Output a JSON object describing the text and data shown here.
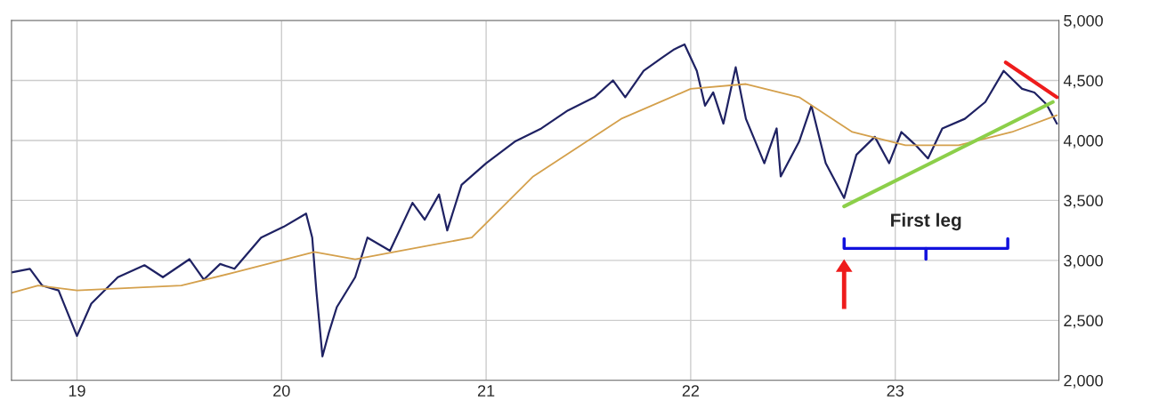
{
  "chart_data": {
    "type": "line",
    "xlim": [
      18.68,
      23.8
    ],
    "ylim": [
      2000,
      5000
    ],
    "xticks": [
      19,
      20,
      21,
      22,
      23
    ],
    "yticks": [
      {
        "value": 2000,
        "label": "2,000"
      },
      {
        "value": 2500,
        "label": "2,500"
      },
      {
        "value": 3000,
        "label": "3,000"
      },
      {
        "value": 3500,
        "label": "3,500"
      },
      {
        "value": 4000,
        "label": "4,000"
      },
      {
        "value": 4500,
        "label": "4,500"
      },
      {
        "value": 5000,
        "label": "5,000"
      }
    ],
    "grid": true,
    "marker": "none",
    "annotations": [
      "First leg"
    ],
    "series": [
      {
        "color": "#1f2263",
        "x": [
          18.68,
          18.77,
          18.83,
          18.91,
          19.0,
          19.07,
          19.2,
          19.33,
          19.42,
          19.55,
          19.62,
          19.7,
          19.77,
          19.9,
          20.01,
          20.12,
          20.15,
          20.17,
          20.2,
          20.23,
          20.27,
          20.36,
          20.42,
          20.53,
          20.64,
          20.7,
          20.77,
          20.81,
          20.88,
          21.0,
          21.14,
          21.27,
          21.4,
          21.53,
          21.62,
          21.68,
          21.77,
          21.86,
          21.92,
          21.97,
          22.03,
          22.07,
          22.11,
          22.16,
          22.22,
          22.27,
          22.36,
          22.42,
          22.44,
          22.53,
          22.59,
          22.66,
          22.75,
          22.81,
          22.9,
          22.97,
          23.03,
          23.1,
          23.16,
          23.23,
          23.34,
          23.44,
          23.53,
          23.62,
          23.68,
          23.74,
          23.79
        ],
        "values": [
          2900,
          2930,
          2790,
          2750,
          2370,
          2640,
          2860,
          2960,
          2860,
          3010,
          2840,
          2970,
          2930,
          3190,
          3280,
          3390,
          3190,
          2750,
          2200,
          2390,
          2610,
          2860,
          3190,
          3080,
          3480,
          3340,
          3550,
          3250,
          3630,
          3810,
          3990,
          4100,
          4250,
          4360,
          4500,
          4360,
          4580,
          4690,
          4760,
          4800,
          4580,
          4290,
          4400,
          4140,
          4610,
          4180,
          3810,
          4100,
          3700,
          3990,
          4290,
          3810,
          3520,
          3880,
          4030,
          3810,
          4070,
          3960,
          3850,
          4100,
          4180,
          4320,
          4580,
          4430,
          4400,
          4300,
          4140
        ]
      },
      {
        "color": "#d4a04c",
        "x": [
          18.68,
          18.81,
          19.0,
          19.51,
          19.77,
          20.16,
          20.36,
          20.58,
          20.93,
          21.23,
          21.66,
          22.0,
          22.27,
          22.53,
          22.79,
          23.05,
          23.31,
          23.57,
          23.79
        ],
        "values": [
          2730,
          2790,
          2750,
          2790,
          2900,
          3070,
          3010,
          3080,
          3190,
          3700,
          4180,
          4430,
          4470,
          4360,
          4070,
          3960,
          3960,
          4070,
          4210
        ]
      },
      {
        "color": "#8ccf4a",
        "x": [
          22.75,
          23.77
        ],
        "values": [
          3450,
          4320
        ]
      },
      {
        "color": "#ee1c1c",
        "x": [
          23.54,
          23.79
        ],
        "values": [
          4650,
          4360
        ]
      }
    ]
  }
}
